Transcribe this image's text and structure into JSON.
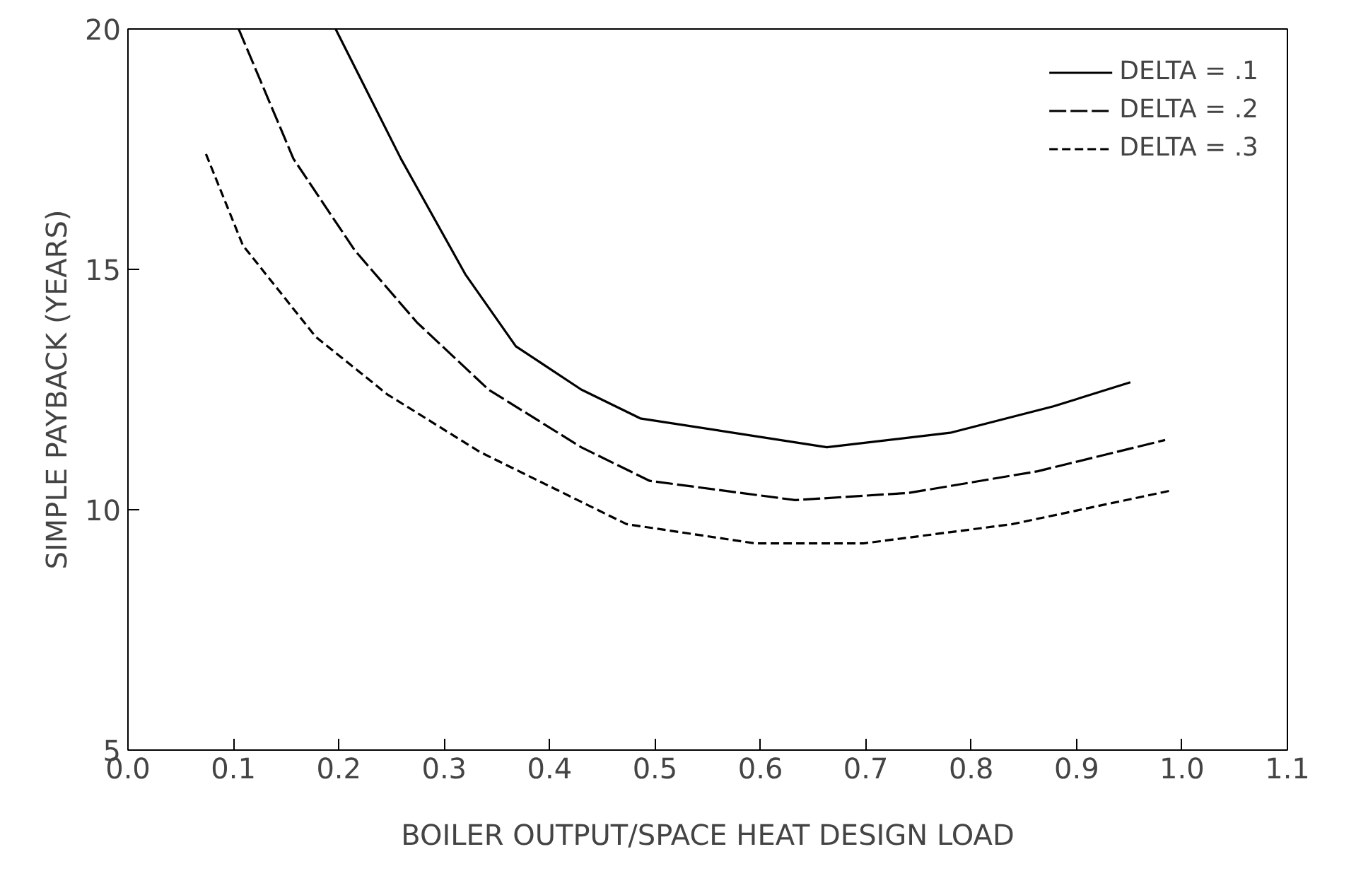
{
  "chart_data": {
    "type": "line",
    "xlabel": "BOILER OUTPUT/SPACE HEAT DESIGN LOAD",
    "ylabel": "SIMPLE PAYBACK (YEARS)",
    "xlim": [
      0,
      1.1
    ],
    "ylim": [
      5,
      20
    ],
    "xticks": [
      {
        "value": 0,
        "label": "0.0"
      },
      {
        "value": 0.1,
        "label": "0.1"
      },
      {
        "value": 0.2,
        "label": "0.2"
      },
      {
        "value": 0.3,
        "label": "0.3"
      },
      {
        "value": 0.4,
        "label": "0.4"
      },
      {
        "value": 0.5,
        "label": "0.5"
      },
      {
        "value": 0.6,
        "label": "0.6"
      },
      {
        "value": 0.7,
        "label": "0.7"
      },
      {
        "value": 0.8,
        "label": "0.8"
      },
      {
        "value": 0.9,
        "label": "0.9"
      },
      {
        "value": 1.0,
        "label": "1.0"
      },
      {
        "value": 1.1,
        "label": "1.1"
      }
    ],
    "yticks": [
      5,
      10,
      15,
      20
    ],
    "grid": false,
    "legend": "top right",
    "marker": "none",
    "series": [
      {
        "name": "DELTA = .1",
        "color": "#000000",
        "line_style": "solid",
        "x": [
          0.197,
          0.259,
          0.32,
          0.368,
          0.43,
          0.486,
          0.663,
          0.78,
          0.878,
          0.951
        ],
        "values": [
          20,
          17.3,
          14.9,
          13.4,
          12.5,
          11.9,
          11.3,
          11.6,
          12.15,
          12.65
        ]
      },
      {
        "name": "DELTA = .2",
        "color": "#000000",
        "line_style": "dashed",
        "x": [
          0.105,
          0.157,
          0.215,
          0.274,
          0.342,
          0.43,
          0.495,
          0.633,
          0.741,
          0.863,
          0.984
        ],
        "values": [
          20,
          17.3,
          15.4,
          13.9,
          12.5,
          11.3,
          10.6,
          10.2,
          10.35,
          10.8,
          11.45
        ]
      },
      {
        "name": "DELTA = .3",
        "color": "#000000",
        "line_style": "dotted",
        "x": [
          0.074,
          0.109,
          0.178,
          0.246,
          0.334,
          0.473,
          0.595,
          0.698,
          0.839,
          0.99
        ],
        "values": [
          17.4,
          15.5,
          13.6,
          12.4,
          11.2,
          9.7,
          9.3,
          9.3,
          9.7,
          10.4
        ]
      }
    ]
  }
}
